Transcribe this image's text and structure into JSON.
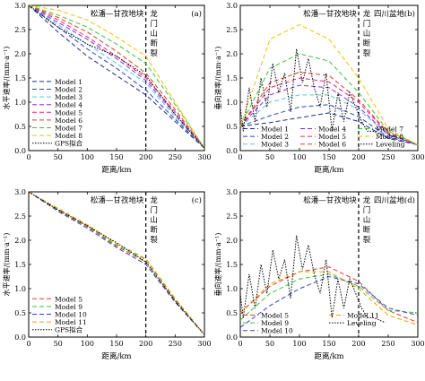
{
  "chart_data": [
    {
      "panel_label": "(a)",
      "type": "line",
      "region_left": "松潘—甘孜地块",
      "region_right": [
        "龙",
        "门",
        "山",
        "断",
        "裂"
      ],
      "region_right_top": "",
      "xlabel": "距离/km",
      "ylabel": "水平速率/(mm·a⁻¹)",
      "xlim": [
        0,
        300
      ],
      "ylim": [
        0,
        3.0
      ],
      "xticks": [
        0,
        50,
        100,
        150,
        200,
        250,
        300
      ],
      "yticks": [
        0,
        0.5,
        1.0,
        1.5,
        2.0,
        2.5,
        3.0
      ],
      "fault_x": 200,
      "legend": {
        "placement": "bottom-left",
        "columns": 1
      },
      "series": [
        {
          "name": "Model 1",
          "color": "#1f2a8a",
          "dash": "5,3",
          "x": [
            0,
            50,
            100,
            150,
            200,
            250,
            300
          ],
          "y": [
            3.0,
            2.45,
            1.95,
            1.55,
            1.15,
            0.6,
            0.05
          ]
        },
        {
          "name": "Model 2",
          "color": "#2a44c8",
          "dash": "5,3",
          "x": [
            0,
            50,
            100,
            150,
            200,
            250,
            300
          ],
          "y": [
            3.0,
            2.55,
            2.1,
            1.7,
            1.25,
            0.65,
            0.05
          ]
        },
        {
          "name": "Model 3",
          "color": "#59c3e0",
          "dash": "5,3",
          "x": [
            0,
            50,
            100,
            150,
            200,
            250,
            300
          ],
          "y": [
            3.0,
            2.6,
            2.2,
            1.8,
            1.4,
            0.7,
            0.05
          ]
        },
        {
          "name": "Model 4",
          "color": "#8a2be2",
          "dash": "5,3",
          "x": [
            0,
            50,
            100,
            150,
            200,
            250,
            300
          ],
          "y": [
            3.0,
            2.65,
            2.3,
            1.9,
            1.45,
            0.75,
            0.05
          ]
        },
        {
          "name": "Model 5",
          "color": "#e0287a",
          "dash": "5,3",
          "x": [
            0,
            50,
            100,
            150,
            200,
            250,
            300
          ],
          "y": [
            3.0,
            2.7,
            2.35,
            1.95,
            1.5,
            0.8,
            0.05
          ]
        },
        {
          "name": "Model 6",
          "color": "#e23b2b",
          "dash": "5,3",
          "x": [
            0,
            50,
            100,
            150,
            200,
            250,
            300
          ],
          "y": [
            3.0,
            2.75,
            2.45,
            2.05,
            1.6,
            0.85,
            0.05
          ]
        },
        {
          "name": "Model 7",
          "color": "#3cc43c",
          "dash": "5,3",
          "x": [
            0,
            50,
            100,
            150,
            200,
            250,
            300
          ],
          "y": [
            3.0,
            2.8,
            2.55,
            2.2,
            1.8,
            0.95,
            0.05
          ]
        },
        {
          "name": "Model 8",
          "color": "#f2c200",
          "dash": "5,3",
          "x": [
            0,
            50,
            100,
            150,
            200,
            250,
            300
          ],
          "y": [
            3.0,
            2.9,
            2.7,
            2.35,
            1.95,
            1.0,
            0.05
          ]
        },
        {
          "name": "GPS拟合",
          "color": "#000000",
          "dash": "1.5,1.5",
          "x": [
            0,
            50,
            100,
            150,
            200,
            250,
            300
          ],
          "y": [
            3.0,
            2.55,
            2.2,
            1.95,
            1.55,
            0.75,
            0.05
          ]
        }
      ]
    },
    {
      "panel_label": "(b)",
      "type": "line",
      "region_left": "松潘—甘孜地块",
      "region_right": [
        "龙",
        "门",
        "山",
        "断",
        "裂"
      ],
      "region_right_top": "四川盆地",
      "xlabel": "距离/km",
      "ylabel": "垂向速率/(mm·a⁻¹)",
      "xlim": [
        0,
        300
      ],
      "ylim": [
        0,
        3.0
      ],
      "xticks": [
        0,
        50,
        100,
        150,
        200,
        250,
        300
      ],
      "yticks": [
        0,
        0.5,
        1.0,
        1.5,
        2.0,
        2.5,
        3.0
      ],
      "fault_x": 200,
      "legend": {
        "placement": "bottom",
        "columns": 3
      },
      "series": [
        {
          "name": "Model 1",
          "color": "#1f2a8a",
          "dash": "5,3",
          "x": [
            0,
            50,
            100,
            150,
            200,
            250,
            300
          ],
          "y": [
            0.5,
            0.58,
            0.68,
            0.78,
            0.6,
            0.25,
            0.12
          ]
        },
        {
          "name": "Model 2",
          "color": "#2a44c8",
          "dash": "5,3",
          "x": [
            0,
            50,
            100,
            150,
            200,
            250,
            300
          ],
          "y": [
            0.5,
            0.72,
            0.9,
            0.95,
            0.7,
            0.28,
            0.12
          ]
        },
        {
          "name": "Model 3",
          "color": "#59c3e0",
          "dash": "5,3",
          "x": [
            0,
            50,
            100,
            150,
            200,
            250,
            300
          ],
          "y": [
            0.5,
            1.0,
            1.15,
            1.15,
            0.85,
            0.32,
            0.12
          ]
        },
        {
          "name": "Model 4",
          "color": "#8a2be2",
          "dash": "5,3",
          "x": [
            0,
            50,
            100,
            150,
            200,
            250,
            300
          ],
          "y": [
            0.5,
            1.15,
            1.35,
            1.3,
            0.9,
            0.33,
            0.12
          ]
        },
        {
          "name": "Model 5",
          "color": "#e0287a",
          "dash": "5,3",
          "x": [
            0,
            50,
            100,
            150,
            200,
            250,
            300
          ],
          "y": [
            0.5,
            1.3,
            1.5,
            1.42,
            1.0,
            0.35,
            0.12
          ]
        },
        {
          "name": "Model 6",
          "color": "#e23b2b",
          "dash": "5,3",
          "x": [
            0,
            50,
            100,
            150,
            200,
            250,
            300
          ],
          "y": [
            0.5,
            1.4,
            1.62,
            1.55,
            1.05,
            0.37,
            0.12
          ]
        },
        {
          "name": "Model 7",
          "color": "#3cc43c",
          "dash": "5,3",
          "x": [
            0,
            50,
            100,
            150,
            200,
            250,
            300
          ],
          "y": [
            0.5,
            1.7,
            2.0,
            1.85,
            1.2,
            0.4,
            0.12
          ]
        },
        {
          "name": "Model 8",
          "color": "#f2c200",
          "dash": "5,3",
          "x": [
            0,
            50,
            100,
            150,
            200,
            250,
            300
          ],
          "y": [
            0.5,
            2.3,
            2.6,
            2.3,
            1.5,
            0.45,
            0.12
          ]
        },
        {
          "name": "Leveling",
          "color": "#000000",
          "dash": "1.5,1.5",
          "x": [
            0,
            5,
            15,
            25,
            35,
            45,
            55,
            65,
            75,
            85,
            95,
            105,
            115,
            125,
            135,
            145,
            155,
            165,
            175,
            185,
            195,
            205,
            215,
            225,
            235,
            245
          ],
          "y": [
            0.9,
            0.4,
            1.3,
            0.6,
            1.5,
            0.9,
            1.8,
            1.2,
            1.6,
            0.8,
            2.1,
            1.4,
            1.9,
            1.3,
            0.9,
            1.6,
            0.4,
            1.2,
            0.6,
            1.2,
            0.9,
            0.6,
            0.4,
            0.4,
            0.35,
            0.3
          ]
        }
      ]
    },
    {
      "panel_label": "(c)",
      "type": "line",
      "region_left": "松潘—甘孜地块",
      "region_right": [
        "龙",
        "门",
        "山",
        "断",
        "裂"
      ],
      "region_right_top": "",
      "xlabel": "距离/km",
      "ylabel": "水平速率/(mm·a⁻¹)",
      "xlim": [
        0,
        300
      ],
      "ylim": [
        0,
        3.0
      ],
      "xticks": [
        0,
        50,
        100,
        150,
        200,
        250,
        300
      ],
      "yticks": [
        0,
        0.5,
        1.0,
        1.5,
        2.0,
        2.5,
        3.0
      ],
      "fault_x": 200,
      "legend": {
        "placement": "bottom-left",
        "columns": 1
      },
      "series": [
        {
          "name": "Model 5",
          "color": "#e23b2b",
          "dash": "5,3",
          "x": [
            0,
            50,
            100,
            150,
            200,
            250,
            300
          ],
          "y": [
            3.0,
            2.62,
            2.28,
            1.88,
            1.55,
            0.75,
            0.05
          ]
        },
        {
          "name": "Model 9",
          "color": "#3cc43c",
          "dash": "5,3",
          "x": [
            0,
            50,
            100,
            150,
            200,
            250,
            300
          ],
          "y": [
            3.0,
            2.64,
            2.3,
            1.9,
            1.6,
            0.78,
            0.05
          ]
        },
        {
          "name": "Model 10",
          "color": "#2a44c8",
          "dash": "5,3",
          "x": [
            0,
            50,
            100,
            150,
            200,
            250,
            300
          ],
          "y": [
            3.0,
            2.6,
            2.25,
            1.85,
            1.5,
            0.72,
            0.05
          ]
        },
        {
          "name": "Model 11",
          "color": "#f2a000",
          "dash": "5,3",
          "x": [
            0,
            50,
            100,
            150,
            200,
            250,
            300
          ],
          "y": [
            3.0,
            2.66,
            2.32,
            1.93,
            1.62,
            0.8,
            0.05
          ]
        },
        {
          "name": "GPS拟合",
          "color": "#000000",
          "dash": "1.5,1.5",
          "x": [
            0,
            50,
            100,
            150,
            200,
            250,
            300
          ],
          "y": [
            3.0,
            2.63,
            2.3,
            1.95,
            1.55,
            0.75,
            0.05
          ]
        }
      ]
    },
    {
      "panel_label": "(d)",
      "type": "line",
      "region_left": "松潘—甘孜地块",
      "region_right": [
        "龙",
        "门",
        "山",
        "断",
        "裂"
      ],
      "region_right_top": "四川盆地",
      "xlabel": "距离/km",
      "ylabel": "垂向速率/(mm·a⁻¹)",
      "xlim": [
        0,
        300
      ],
      "ylim": [
        0,
        3.0
      ],
      "xticks": [
        0,
        50,
        100,
        150,
        200,
        250,
        300
      ],
      "yticks": [
        0,
        0.5,
        1.0,
        1.5,
        2.0,
        2.5,
        3.0
      ],
      "fault_x": 200,
      "legend": {
        "placement": "bottom",
        "columns": 2
      },
      "series": [
        {
          "name": "Model 5",
          "color": "#e23b2b",
          "dash": "5,3",
          "x": [
            0,
            50,
            100,
            150,
            200,
            250,
            300
          ],
          "y": [
            0.5,
            1.05,
            1.35,
            1.45,
            1.15,
            0.55,
            0.3
          ]
        },
        {
          "name": "Model 9",
          "color": "#3cc43c",
          "dash": "5,3",
          "x": [
            0,
            50,
            100,
            150,
            200,
            250,
            300
          ],
          "y": [
            0.35,
            0.9,
            1.2,
            1.3,
            1.05,
            0.55,
            0.5
          ]
        },
        {
          "name": "Model 10",
          "color": "#2a44c8",
          "dash": "5,3",
          "x": [
            0,
            50,
            100,
            150,
            200,
            250,
            300
          ],
          "y": [
            0.2,
            0.65,
            1.0,
            1.25,
            1.1,
            0.6,
            0.45
          ]
        },
        {
          "name": "Model 11",
          "color": "#f2a000",
          "dash": "5,3",
          "x": [
            0,
            50,
            100,
            150,
            200,
            250,
            300
          ],
          "y": [
            0.5,
            1.1,
            1.35,
            1.35,
            1.0,
            0.45,
            0.25
          ]
        },
        {
          "name": "Leveling",
          "color": "#000000",
          "dash": "1.5,1.5",
          "x": [
            0,
            5,
            15,
            25,
            35,
            45,
            55,
            65,
            75,
            85,
            95,
            105,
            115,
            125,
            135,
            145,
            155,
            165,
            175,
            185,
            195,
            205,
            215,
            225,
            235,
            245
          ],
          "y": [
            0.9,
            0.4,
            1.3,
            0.6,
            1.5,
            0.9,
            1.8,
            1.2,
            1.6,
            0.8,
            2.1,
            1.4,
            1.9,
            1.3,
            0.9,
            1.6,
            0.4,
            1.2,
            0.6,
            1.2,
            0.9,
            0.6,
            0.4,
            0.4,
            0.35,
            0.3
          ]
        }
      ]
    }
  ]
}
